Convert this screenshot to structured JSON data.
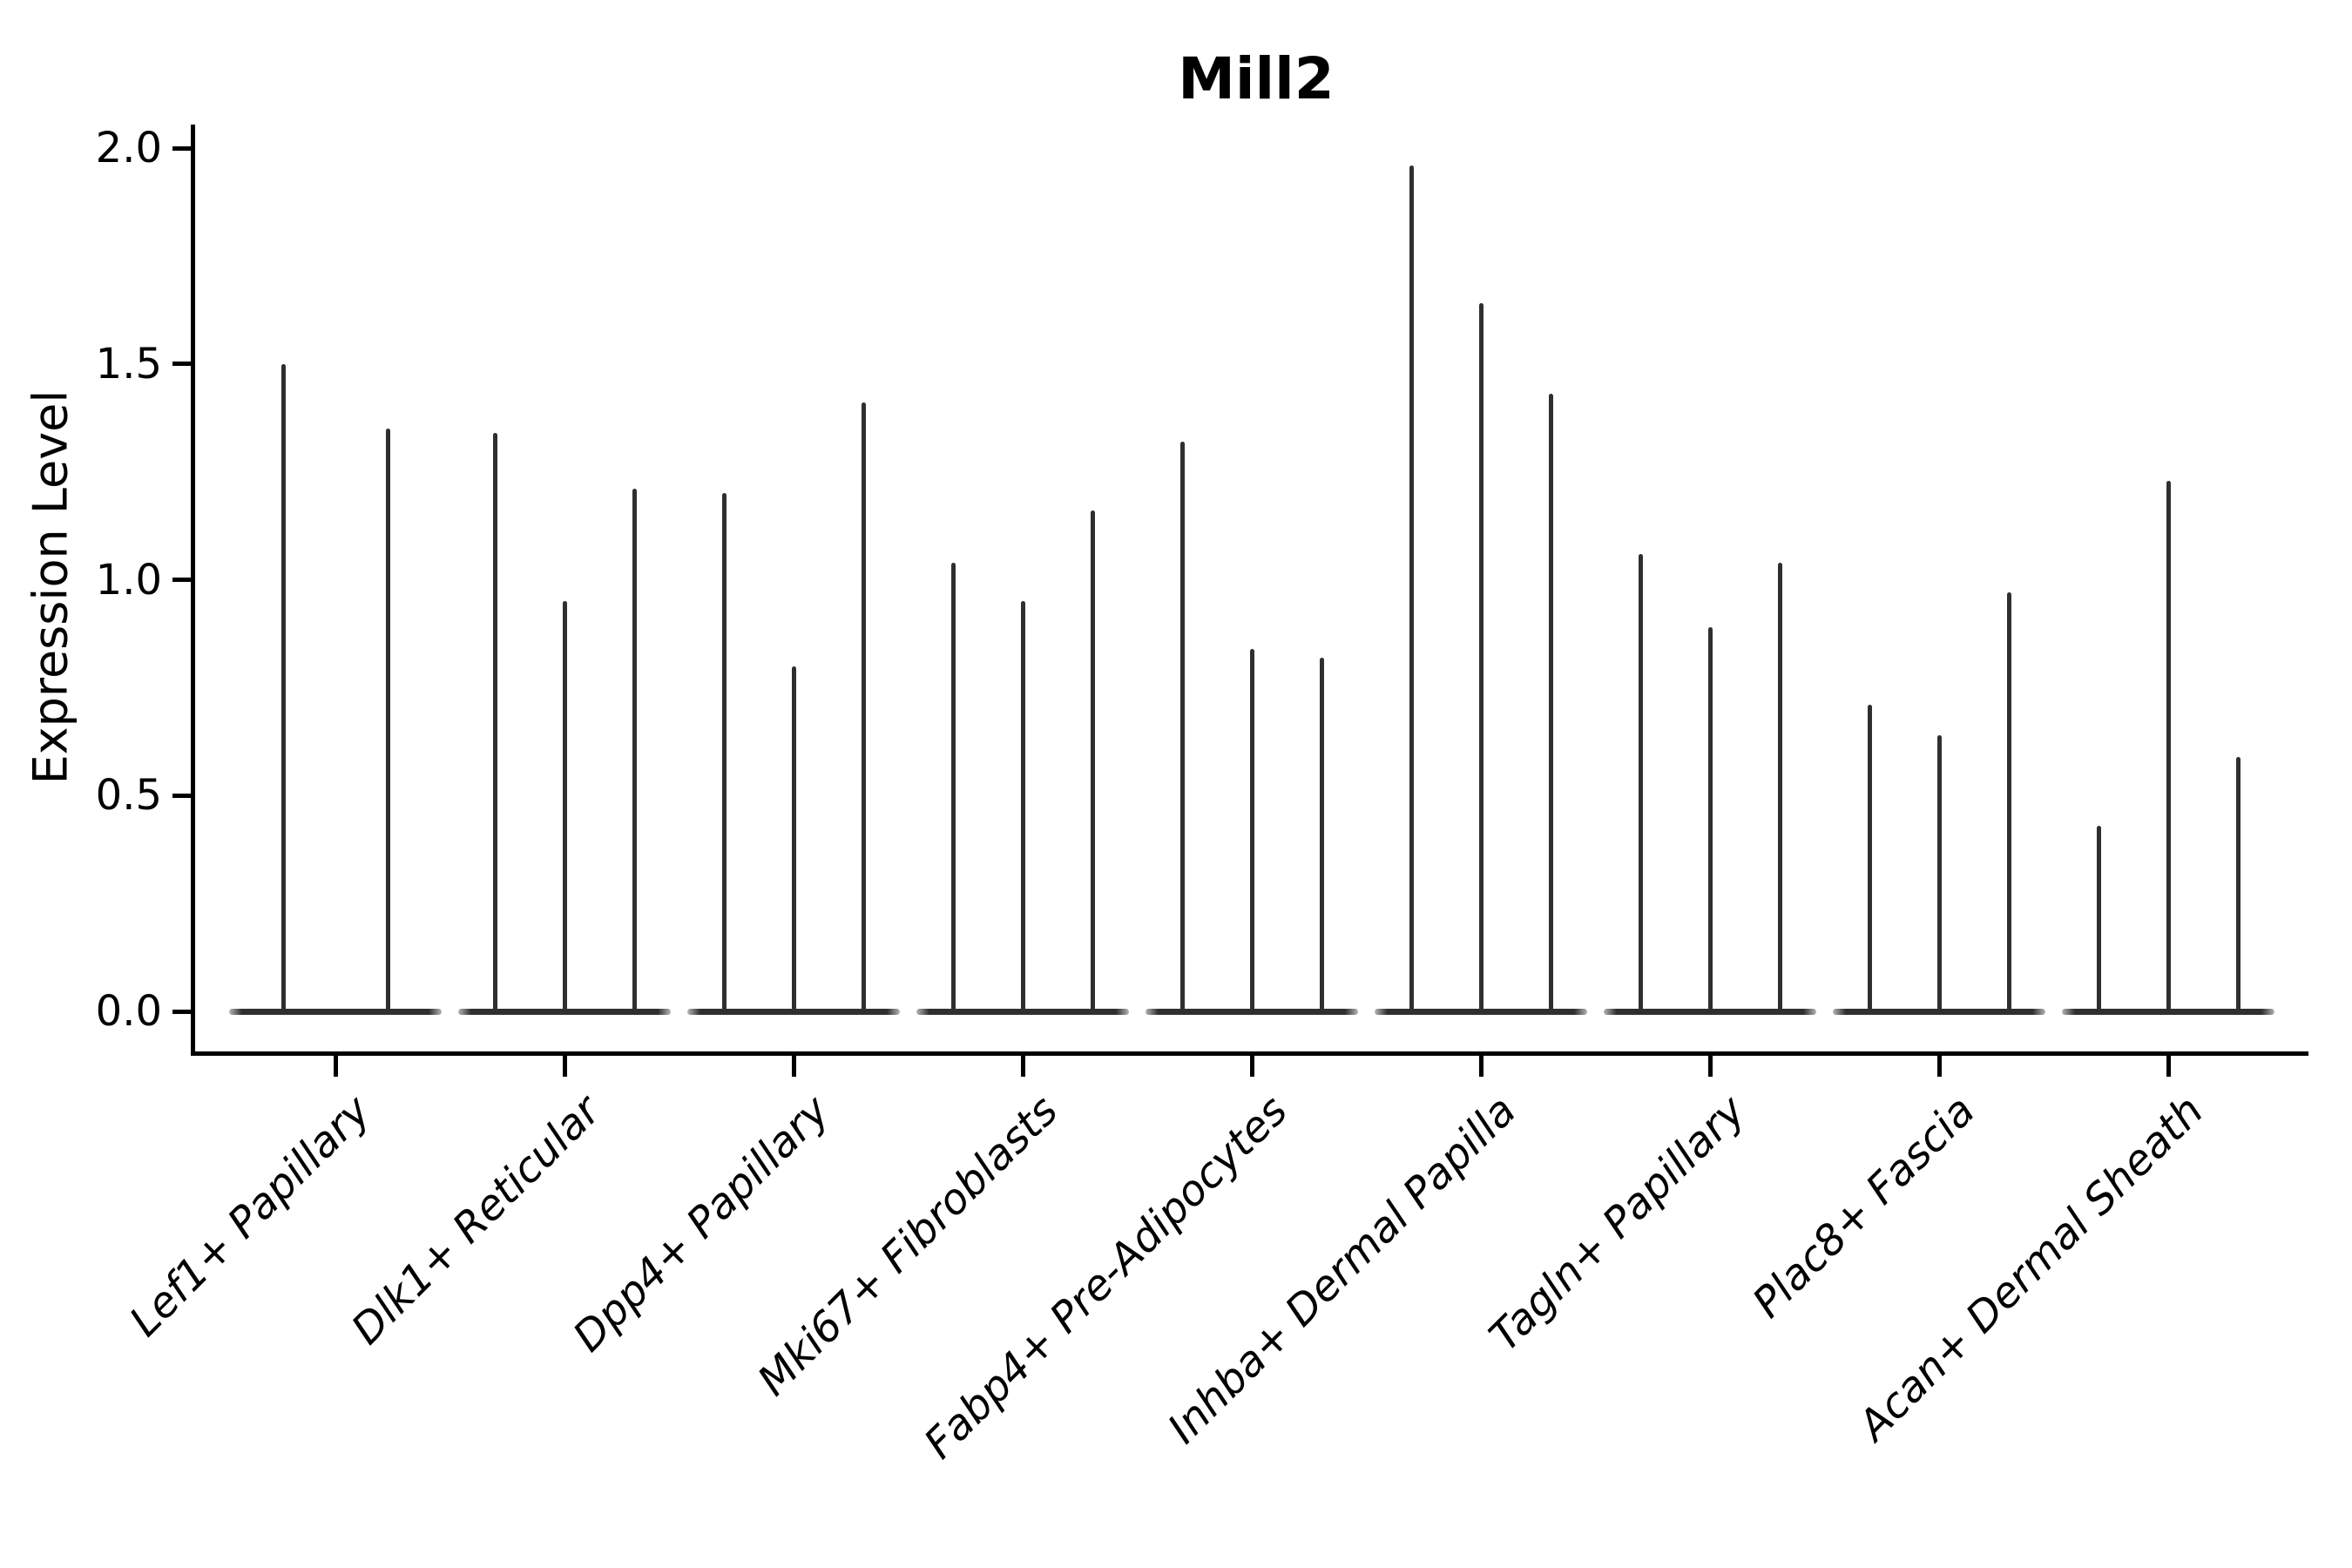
{
  "title": "Mill2",
  "axes": {
    "ylabel": "Expression Level",
    "xlabel": ""
  },
  "colors": {
    "ink": "#2f2f2f",
    "axis": "#000000",
    "background": "#ffffff"
  },
  "chart_data": {
    "type": "violin",
    "title": "Mill2",
    "ylabel": "Expression Level",
    "xlabel": "",
    "ylim": [
      0,
      2.05
    ],
    "yticks": [
      0.0,
      0.5,
      1.0,
      1.5,
      2.0
    ],
    "grid": false,
    "legend": "none",
    "description": "Needle-shaped violins: bulk of cells at expression 0 forming a flat base disk, with a thin spike rising to the maximum expression value per violin.",
    "groups": [
      {
        "label": "Lef1+ Papillary",
        "violin_peaks": [
          1.5,
          1.35
        ]
      },
      {
        "label": "Dlk1+ Reticular",
        "violin_peaks": [
          1.34,
          0.95,
          1.21
        ]
      },
      {
        "label": "Dpp4+ Papillary",
        "violin_peaks": [
          1.2,
          0.8,
          1.41
        ]
      },
      {
        "label": "Mki67+ Fibroblasts",
        "violin_peaks": [
          1.04,
          0.95,
          1.16
        ]
      },
      {
        "label": "Fabp4+ Pre-Adipocytes",
        "violin_peaks": [
          1.32,
          0.84,
          0.82
        ]
      },
      {
        "label": "Inhba+ Dermal Papilla",
        "violin_peaks": [
          1.96,
          1.64,
          1.43
        ]
      },
      {
        "label": "Tagln+ Papillary",
        "violin_peaks": [
          1.06,
          0.89,
          1.04
        ]
      },
      {
        "label": "Plac8+ Fascia",
        "violin_peaks": [
          0.71,
          0.64,
          0.97
        ]
      },
      {
        "label": "Acan+ Dermal Sheath",
        "violin_peaks": [
          0.43,
          1.23,
          0.59
        ]
      }
    ]
  }
}
